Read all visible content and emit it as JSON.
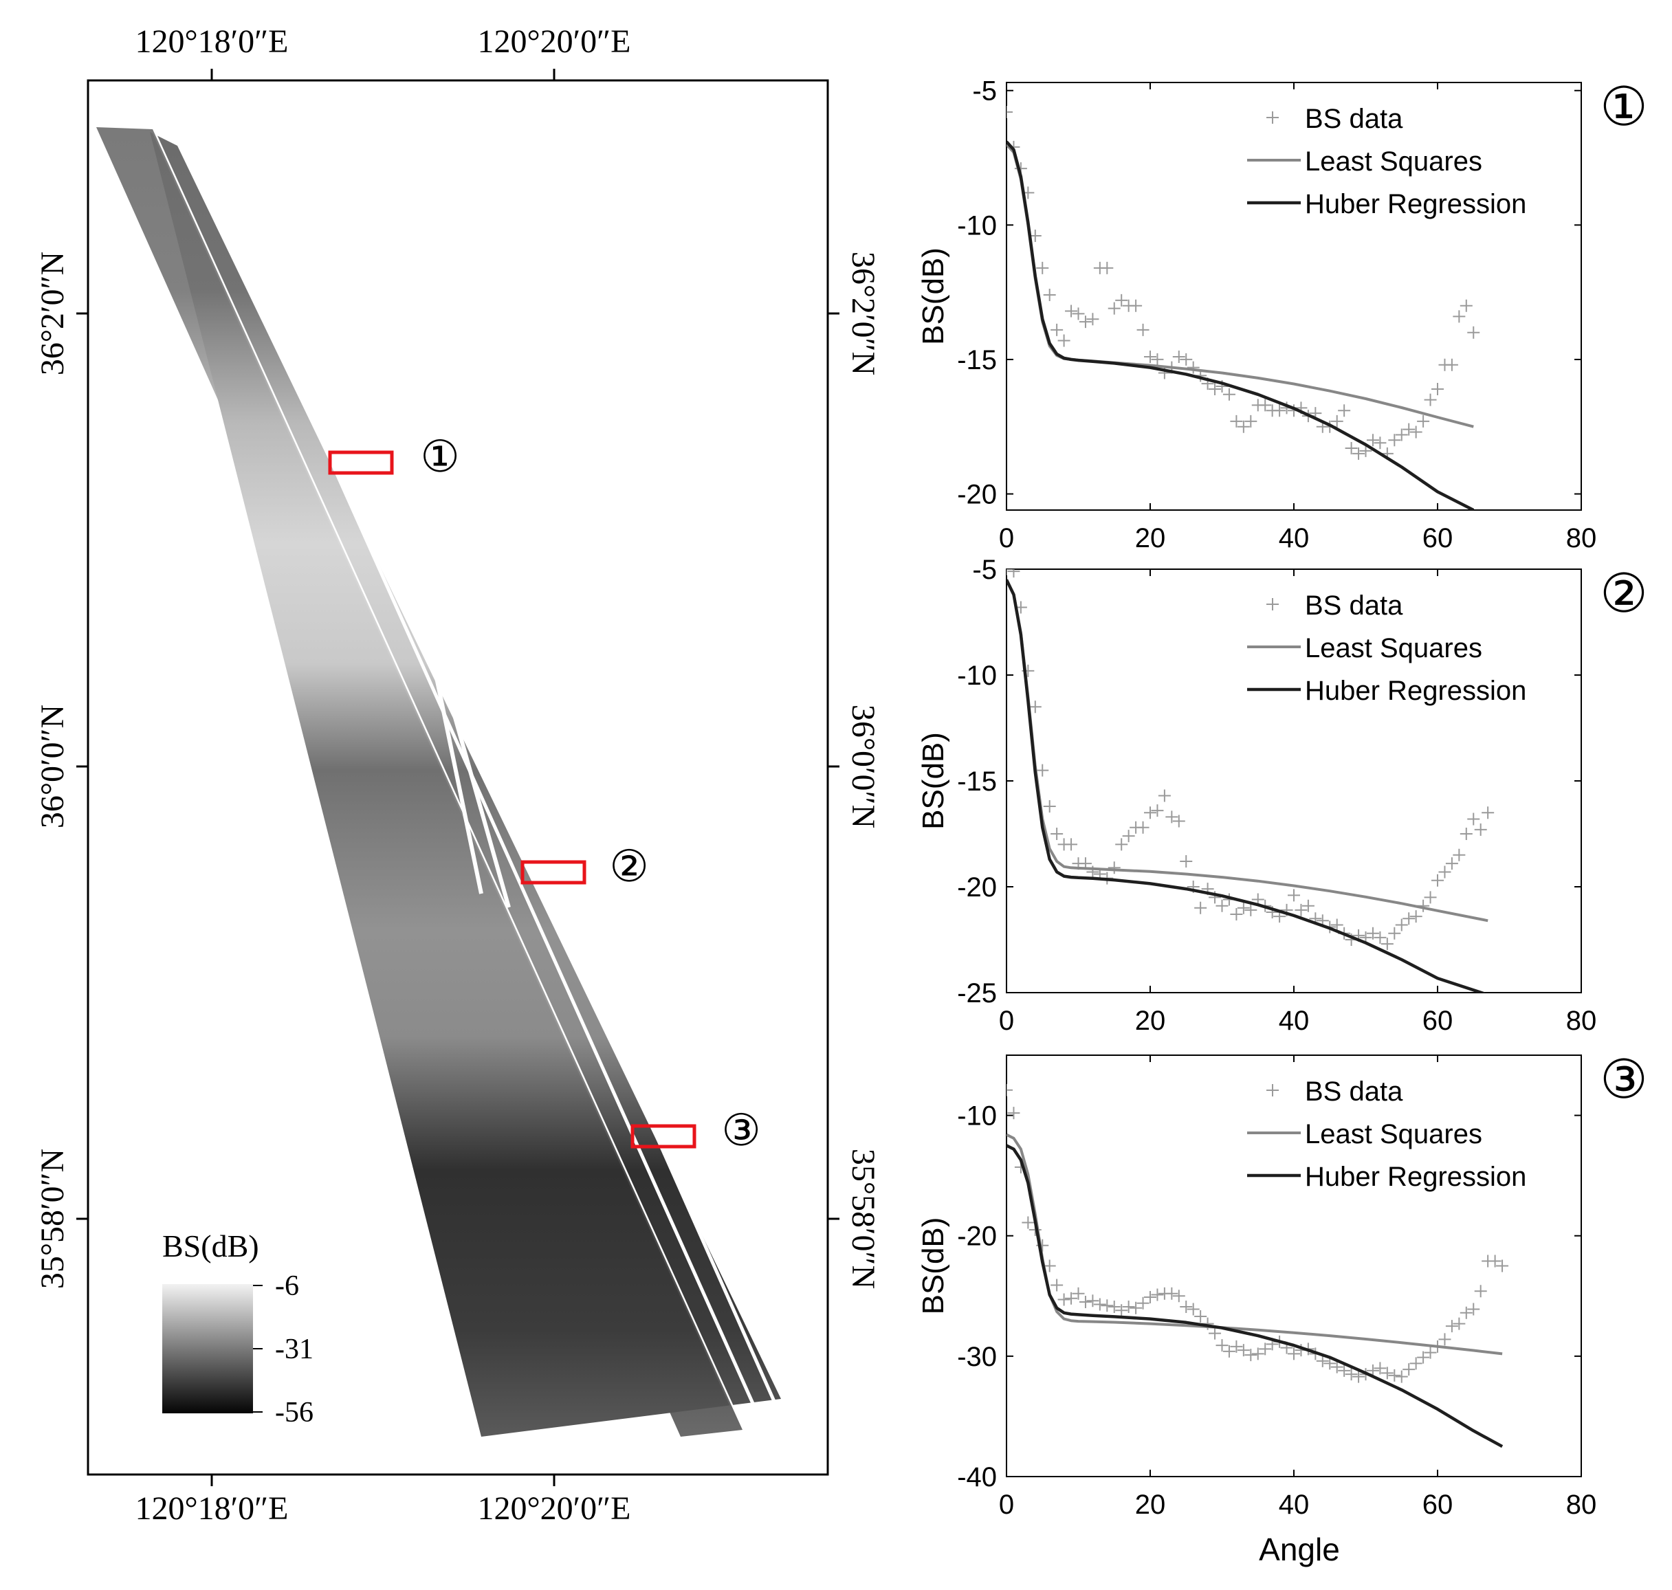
{
  "map": {
    "top_lon_labels": [
      "120°18′0″E",
      "120°20′0″E"
    ],
    "bottom_lon_labels": [
      "120°18′0″E",
      "120°20′0″E"
    ],
    "left_lat_labels": [
      "36°2′0″N",
      "36°0′0″N",
      "35°58′0″N"
    ],
    "right_lat_labels": [
      "36°2′0″N",
      "36°0′0″N",
      "35°58′0″N"
    ],
    "area_markers": [
      "①",
      "②",
      "③"
    ],
    "marker_color": "#e8141b",
    "colorbar": {
      "title": "BS(dB)",
      "tick_labels": [
        "-6",
        "-31",
        "-56"
      ],
      "range_db": [
        -56,
        -6
      ]
    }
  },
  "chart_data": [
    {
      "type": "scatter+line",
      "panel_label": "①",
      "xlabel": "",
      "ylabel": "BS(dB)",
      "xlim": [
        0,
        80
      ],
      "ylim": [
        -20.6,
        -4.7
      ],
      "xticks": [
        "0",
        "20",
        "40",
        "60",
        "80"
      ],
      "yticks": [
        "-5",
        "-10",
        "-15",
        "-20"
      ],
      "legend": {
        "position": "top-right",
        "entries": [
          "BS data",
          "Least Squares",
          "Huber Regression"
        ]
      },
      "series": [
        {
          "name": "BS data",
          "kind": "scatter",
          "marker": "+",
          "x": [
            0,
            1,
            2,
            3,
            4,
            5,
            6,
            7,
            8,
            9,
            10,
            11,
            12,
            13,
            14,
            15,
            16,
            17,
            18,
            19,
            20,
            21,
            22,
            23,
            24,
            25,
            26,
            27,
            28,
            29,
            30,
            31,
            32,
            33,
            34,
            35,
            36,
            37,
            38,
            39,
            40,
            41,
            42,
            43,
            44,
            45,
            46,
            47,
            48,
            49,
            50,
            51,
            52,
            53,
            54,
            55,
            56,
            57,
            58,
            59,
            60,
            61,
            62,
            63,
            64,
            65
          ],
          "y": [
            -5.8,
            -7.1,
            -7.9,
            -8.8,
            -10.4,
            -11.6,
            -12.6,
            -13.9,
            -14.3,
            -13.2,
            -13.3,
            -13.6,
            -13.5,
            -11.6,
            -11.6,
            -13.1,
            -12.8,
            -13.0,
            -13.0,
            -13.9,
            -14.9,
            -15.0,
            -15.5,
            -15.3,
            -14.9,
            -15.0,
            -15.3,
            -15.6,
            -15.9,
            -16.1,
            -16.0,
            -16.3,
            -17.3,
            -17.5,
            -17.3,
            -16.7,
            -16.7,
            -16.9,
            -16.9,
            -16.8,
            -16.9,
            -16.8,
            -17.1,
            -17.0,
            -17.5,
            -17.5,
            -17.3,
            -16.9,
            -18.3,
            -18.5,
            -18.4,
            -18.0,
            -18.1,
            -18.5,
            -18.0,
            -17.8,
            -17.6,
            -17.7,
            -17.3,
            -16.5,
            -16.1,
            -15.2,
            -15.2,
            -13.4,
            -13.0,
            -14.0
          ]
        },
        {
          "name": "Least Squares",
          "kind": "line",
          "x": [
            0,
            1,
            2,
            3,
            4,
            5,
            6,
            7,
            8,
            9,
            10,
            12,
            15,
            20,
            25,
            30,
            35,
            40,
            45,
            50,
            55,
            60,
            65
          ],
          "y": [
            -7.0,
            -7.3,
            -8.3,
            -10.0,
            -12.0,
            -13.6,
            -14.5,
            -14.85,
            -14.97,
            -15.0,
            -15.02,
            -15.06,
            -15.12,
            -15.22,
            -15.35,
            -15.5,
            -15.69,
            -15.91,
            -16.17,
            -16.46,
            -16.79,
            -17.15,
            -17.5
          ]
        },
        {
          "name": "Huber Regression",
          "kind": "line",
          "x": [
            0,
            1,
            2,
            3,
            4,
            5,
            6,
            7,
            8,
            9,
            10,
            12,
            15,
            20,
            25,
            30,
            35,
            40,
            45,
            50,
            55,
            60,
            65
          ],
          "y": [
            -6.9,
            -7.2,
            -8.2,
            -9.9,
            -11.9,
            -13.5,
            -14.4,
            -14.8,
            -14.95,
            -15.0,
            -15.03,
            -15.07,
            -15.14,
            -15.3,
            -15.55,
            -15.88,
            -16.3,
            -16.82,
            -17.44,
            -18.17,
            -19.0,
            -19.92,
            -20.6
          ]
        }
      ]
    },
    {
      "type": "scatter+line",
      "panel_label": "②",
      "xlabel": "",
      "ylabel": "BS(dB)",
      "xlim": [
        0,
        80
      ],
      "ylim": [
        -25,
        -5
      ],
      "xticks": [
        "0",
        "20",
        "40",
        "60",
        "80"
      ],
      "yticks": [
        "-5",
        "-10",
        "-15",
        "-20",
        "-25"
      ],
      "legend": {
        "position": "top-right",
        "entries": [
          "BS data",
          "Least Squares",
          "Huber Regression"
        ]
      },
      "series": [
        {
          "name": "BS data",
          "kind": "scatter",
          "marker": "+",
          "x": [
            0,
            1,
            2,
            3,
            4,
            5,
            6,
            7,
            8,
            9,
            10,
            11,
            12,
            13,
            14,
            15,
            16,
            17,
            18,
            19,
            20,
            21,
            22,
            23,
            24,
            25,
            26,
            27,
            28,
            29,
            30,
            31,
            32,
            33,
            34,
            35,
            36,
            37,
            38,
            39,
            40,
            41,
            42,
            43,
            44,
            45,
            46,
            47,
            48,
            49,
            50,
            51,
            52,
            53,
            54,
            55,
            56,
            57,
            58,
            59,
            60,
            61,
            62,
            63,
            64,
            65,
            66,
            67
          ],
          "y": [
            -5.0,
            -5.1,
            -6.8,
            -9.8,
            -11.5,
            -14.5,
            -16.2,
            -17.5,
            -18.0,
            -18.0,
            -18.9,
            -18.9,
            -19.3,
            -19.4,
            -19.6,
            -19.1,
            -18.0,
            -17.6,
            -17.2,
            -17.2,
            -16.5,
            -16.4,
            -15.7,
            -16.7,
            -16.9,
            -18.8,
            -20.0,
            -21.0,
            -20.1,
            -20.5,
            -20.9,
            -20.6,
            -21.3,
            -21.0,
            -21.1,
            -20.6,
            -20.9,
            -21.2,
            -21.4,
            -21.1,
            -20.4,
            -21.1,
            -20.9,
            -21.5,
            -21.6,
            -21.9,
            -21.8,
            -22.2,
            -22.5,
            -22.3,
            -22.4,
            -22.2,
            -22.4,
            -22.7,
            -22.2,
            -21.8,
            -21.5,
            -21.4,
            -20.9,
            -20.5,
            -19.7,
            -19.3,
            -18.9,
            -18.5,
            -17.5,
            -16.8,
            -17.3,
            -16.5
          ]
        },
        {
          "name": "Least Squares",
          "kind": "line",
          "x": [
            0,
            1,
            2,
            3,
            4,
            5,
            6,
            7,
            8,
            9,
            10,
            12,
            15,
            20,
            25,
            30,
            35,
            40,
            45,
            50,
            55,
            60,
            67
          ],
          "y": [
            -5.5,
            -6.2,
            -8.0,
            -11.0,
            -14.3,
            -16.8,
            -18.2,
            -18.8,
            -19.05,
            -19.1,
            -19.12,
            -19.15,
            -19.2,
            -19.28,
            -19.4,
            -19.55,
            -19.73,
            -19.95,
            -20.2,
            -20.48,
            -20.79,
            -21.13,
            -21.6
          ]
        },
        {
          "name": "Huber Regression",
          "kind": "line",
          "x": [
            0,
            1,
            2,
            3,
            4,
            5,
            6,
            7,
            8,
            9,
            10,
            12,
            15,
            20,
            25,
            30,
            35,
            40,
            45,
            50,
            55,
            60,
            67
          ],
          "y": [
            -5.5,
            -6.2,
            -8.1,
            -11.2,
            -14.6,
            -17.2,
            -18.7,
            -19.3,
            -19.5,
            -19.55,
            -19.57,
            -19.6,
            -19.68,
            -19.85,
            -20.1,
            -20.43,
            -20.85,
            -21.36,
            -21.96,
            -22.65,
            -23.44,
            -24.32,
            -25.1
          ]
        }
      ]
    },
    {
      "type": "scatter+line",
      "panel_label": "③",
      "xlabel": "Angle",
      "ylabel": "BS(dB)",
      "xlim": [
        0,
        80
      ],
      "ylim": [
        -40,
        -5
      ],
      "xticks": [
        "0",
        "20",
        "40",
        "60",
        "80"
      ],
      "yticks": [
        "-10",
        "-20",
        "-30",
        "-40"
      ],
      "legend": {
        "position": "top-right",
        "entries": [
          "BS data",
          "Least Squares",
          "Huber Regression"
        ]
      },
      "series": [
        {
          "name": "BS data",
          "kind": "scatter",
          "marker": "+",
          "x": [
            0,
            1,
            2,
            3,
            4,
            5,
            6,
            7,
            8,
            9,
            10,
            11,
            12,
            13,
            14,
            15,
            16,
            17,
            18,
            19,
            20,
            21,
            22,
            23,
            24,
            25,
            26,
            27,
            28,
            29,
            30,
            31,
            32,
            33,
            34,
            35,
            36,
            37,
            38,
            39,
            40,
            41,
            42,
            43,
            44,
            45,
            46,
            47,
            48,
            49,
            50,
            51,
            52,
            53,
            54,
            55,
            56,
            57,
            58,
            59,
            60,
            61,
            62,
            63,
            64,
            65,
            66,
            67,
            68,
            69
          ],
          "y": [
            -7.9,
            -9.8,
            -14.3,
            -18.9,
            -19.5,
            -20.8,
            -22.5,
            -24.1,
            -25.3,
            -25.2,
            -24.8,
            -25.5,
            -25.4,
            -25.7,
            -25.8,
            -25.9,
            -26.2,
            -25.9,
            -26.0,
            -25.6,
            -25.1,
            -24.9,
            -24.8,
            -24.8,
            -25.0,
            -25.9,
            -26.1,
            -26.7,
            -27.3,
            -28.1,
            -29.1,
            -29.6,
            -29.2,
            -29.5,
            -29.9,
            -29.8,
            -29.4,
            -29.0,
            -28.8,
            -29.3,
            -29.8,
            -29.5,
            -29.4,
            -29.8,
            -30.4,
            -30.6,
            -30.9,
            -31.2,
            -31.5,
            -31.7,
            -31.5,
            -31.2,
            -31.0,
            -31.4,
            -31.6,
            -31.7,
            -31.1,
            -30.6,
            -30.1,
            -29.7,
            -29.2,
            -28.6,
            -27.5,
            -27.3,
            -26.4,
            -26.1,
            -24.6,
            -22.1,
            -22.1,
            -22.5
          ]
        },
        {
          "name": "Least Squares",
          "kind": "line",
          "x": [
            0,
            1,
            2,
            3,
            4,
            5,
            6,
            7,
            8,
            9,
            10,
            12,
            15,
            20,
            25,
            30,
            35,
            40,
            45,
            50,
            55,
            60,
            65,
            69
          ],
          "y": [
            -11.6,
            -11.9,
            -12.8,
            -14.9,
            -18.2,
            -21.9,
            -24.9,
            -26.3,
            -26.9,
            -27.05,
            -27.1,
            -27.13,
            -27.18,
            -27.3,
            -27.45,
            -27.62,
            -27.82,
            -28.05,
            -28.3,
            -28.58,
            -28.88,
            -29.2,
            -29.52,
            -29.8
          ]
        },
        {
          "name": "Huber Regression",
          "kind": "line",
          "x": [
            0,
            1,
            2,
            3,
            4,
            5,
            6,
            7,
            8,
            9,
            10,
            12,
            15,
            20,
            25,
            30,
            35,
            40,
            45,
            50,
            55,
            60,
            65,
            69
          ],
          "y": [
            -12.5,
            -12.8,
            -13.7,
            -15.6,
            -18.8,
            -22.2,
            -24.9,
            -26.0,
            -26.4,
            -26.5,
            -26.55,
            -26.62,
            -26.72,
            -26.9,
            -27.2,
            -27.65,
            -28.3,
            -29.1,
            -30.1,
            -31.4,
            -32.8,
            -34.4,
            -36.2,
            -37.5
          ]
        }
      ]
    }
  ]
}
